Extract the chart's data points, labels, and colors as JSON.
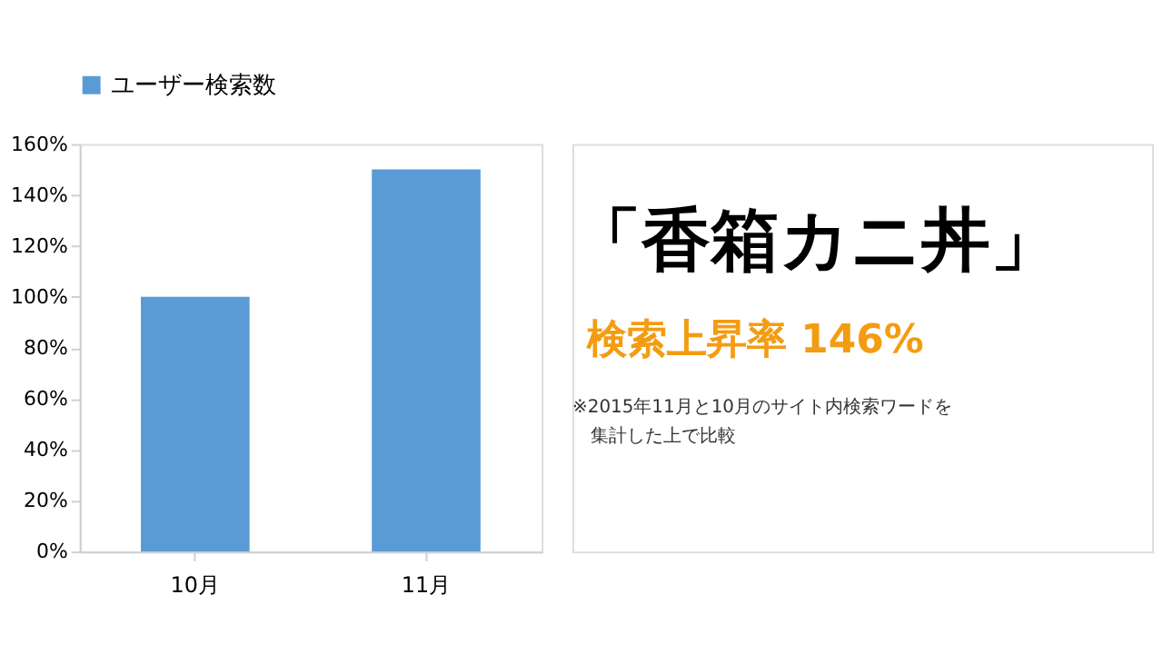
{
  "chart_data": {
    "type": "bar",
    "title": "「香箱カニ丼」",
    "subtitle": "検索上昇率 146%",
    "annotations": [
      "※2015年11月と10月のサイト内検索ワードを",
      "集計した上で比較"
    ],
    "categories": [
      "10月",
      "11月"
    ],
    "series": [
      {
        "name": "ユーザー検索数",
        "color": "#5b9bd5",
        "values": [
          100,
          150
        ]
      }
    ],
    "ylim": [
      0,
      160
    ],
    "yticks": [
      {
        "value": 0,
        "label": "0%"
      },
      {
        "value": 20,
        "label": "20%"
      },
      {
        "value": 40,
        "label": "40%"
      },
      {
        "value": 60,
        "label": "60%"
      },
      {
        "value": 80,
        "label": "80%"
      },
      {
        "value": 100,
        "label": "100%"
      },
      {
        "value": 120,
        "label": "120%"
      },
      {
        "value": 140,
        "label": "140%"
      },
      {
        "value": 160,
        "label": "160%"
      }
    ],
    "grid": false,
    "legend": "top"
  }
}
